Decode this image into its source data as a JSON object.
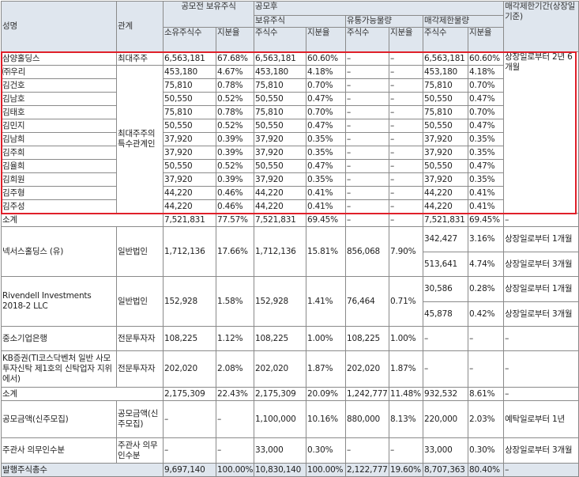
{
  "header": {
    "name": "성명",
    "relation": "관계",
    "pre": "공모전 보유주식",
    "post": "공모후",
    "post_holding": "보유주식",
    "tradable": "유통가능물량",
    "restricted": "매각제한물량",
    "lockup": "매각제한기간(상장일 기준)",
    "owned_shares": "소유주식수",
    "shares": "주식수",
    "ratio": "지분율"
  },
  "rows": [
    {
      "name": "삼양홀딩스",
      "relation": "최대주주",
      "pre_shares": "6,563,181",
      "pre_ratio": "67.68%",
      "post_shares": "6,563,181",
      "post_ratio": "60.60%",
      "tr_shares": "–",
      "tr_ratio": "–",
      "re_shares": "6,563,181",
      "re_ratio": "60.60%",
      "lockup": "상장일로부터 2년 6개월"
    },
    {
      "name": "㈜우리",
      "pre_shares": "453,180",
      "pre_ratio": "4.67%",
      "post_shares": "453,180",
      "post_ratio": "4.18%",
      "tr_shares": "–",
      "tr_ratio": "–",
      "re_shares": "453,180",
      "re_ratio": "4.18%"
    },
    {
      "name": "김건호",
      "pre_shares": "75,810",
      "pre_ratio": "0.78%",
      "post_shares": "75,810",
      "post_ratio": "0.70%",
      "tr_shares": "–",
      "tr_ratio": "–",
      "re_shares": "75,810",
      "re_ratio": "0.70%"
    },
    {
      "name": "김남호",
      "pre_shares": "50,550",
      "pre_ratio": "0.52%",
      "post_shares": "50,550",
      "post_ratio": "0.47%",
      "tr_shares": "–",
      "tr_ratio": "–",
      "re_shares": "50,550",
      "re_ratio": "0.47%"
    },
    {
      "name": "김태호",
      "pre_shares": "75,810",
      "pre_ratio": "0.78%",
      "post_shares": "75,810",
      "post_ratio": "0.70%",
      "tr_shares": "–",
      "tr_ratio": "–",
      "re_shares": "75,810",
      "re_ratio": "0.70%"
    },
    {
      "name": "김민지",
      "pre_shares": "50,550",
      "pre_ratio": "0.52%",
      "post_shares": "50,550",
      "post_ratio": "0.47%",
      "tr_shares": "–",
      "tr_ratio": "–",
      "re_shares": "50,550",
      "re_ratio": "0.47%"
    },
    {
      "name": "김남희",
      "pre_shares": "37,920",
      "pre_ratio": "0.39%",
      "post_shares": "37,920",
      "post_ratio": "0.35%",
      "tr_shares": "–",
      "tr_ratio": "–",
      "re_shares": "37,920",
      "re_ratio": "0.35%"
    },
    {
      "name": "김주희",
      "pre_shares": "37,920",
      "pre_ratio": "0.39%",
      "post_shares": "37,920",
      "post_ratio": "0.35%",
      "tr_shares": "–",
      "tr_ratio": "–",
      "re_shares": "37,920",
      "re_ratio": "0.35%"
    },
    {
      "name": "김율희",
      "pre_shares": "50,550",
      "pre_ratio": "0.52%",
      "post_shares": "50,550",
      "post_ratio": "0.47%",
      "tr_shares": "–",
      "tr_ratio": "–",
      "re_shares": "50,550",
      "re_ratio": "0.47%"
    },
    {
      "name": "김희원",
      "pre_shares": "37,920",
      "pre_ratio": "0.39%",
      "post_shares": "37,920",
      "post_ratio": "0.35%",
      "tr_shares": "–",
      "tr_ratio": "–",
      "re_shares": "37,920",
      "re_ratio": "0.35%"
    },
    {
      "name": "김주형",
      "pre_shares": "44,220",
      "pre_ratio": "0.46%",
      "post_shares": "44,220",
      "post_ratio": "0.41%",
      "tr_shares": "–",
      "tr_ratio": "–",
      "re_shares": "44,220",
      "re_ratio": "0.41%"
    },
    {
      "name": "김주성",
      "pre_shares": "44,220",
      "pre_ratio": "0.46%",
      "post_shares": "44,220",
      "post_ratio": "0.41%",
      "tr_shares": "–",
      "tr_ratio": "–",
      "re_shares": "44,220",
      "re_ratio": "0.41%"
    }
  ],
  "related_relation": "최대주주의 특수관계인",
  "subtotal1": {
    "label": "소계",
    "pre_shares": "7,521,831",
    "pre_ratio": "77.57%",
    "post_shares": "7,521,831",
    "post_ratio": "69.45%",
    "tr_shares": "–",
    "tr_ratio": "–",
    "re_shares": "7,521,831",
    "re_ratio": "69.45%",
    "lockup": "–"
  },
  "nexus": {
    "name": "넥서스홀딩스 (유)",
    "relation": "일반법인",
    "pre_shares": "1,712,136",
    "pre_ratio": "17.66%",
    "post_shares": "1,712,136",
    "post_ratio": "15.81%",
    "tr_shares": "856,068",
    "tr_ratio": "7.90%",
    "re_a_shares": "342,427",
    "re_a_ratio": "3.16%",
    "lock_a": "상장일로부터 1개월",
    "re_b_shares": "513,641",
    "re_b_ratio": "4.74%",
    "lock_b": "상장일로부터 3개월"
  },
  "rivendell": {
    "name": "Rivendell Investments 2018-2 LLC",
    "relation": "일반법인",
    "pre_shares": "152,928",
    "pre_ratio": "1.58%",
    "post_shares": "152,928",
    "post_ratio": "1.41%",
    "tr_shares": "76,464",
    "tr_ratio": "0.71%",
    "re_a_shares": "30,586",
    "re_a_ratio": "0.28%",
    "lock_a": "상장일로부터 1개월",
    "re_b_shares": "45,878",
    "re_b_ratio": "0.42%",
    "lock_b": "상장일로부터 3개월"
  },
  "sme": {
    "name": "중소기업은행",
    "relation": "전문투자자",
    "pre_shares": "108,225",
    "pre_ratio": "1.12%",
    "post_shares": "108,225",
    "post_ratio": "1.00%",
    "tr_shares": "108,225",
    "tr_ratio": "1.00%",
    "re_shares": "–",
    "re_ratio": "–",
    "lockup": "–"
  },
  "kb": {
    "name": "KB증권(TI코스닥벤처 일반 사모투자신탁 제1호의 신탁업자 지위에서)",
    "relation": "전문투자자",
    "pre_shares": "202,020",
    "pre_ratio": "2.08%",
    "post_shares": "202,020",
    "post_ratio": "1.87%",
    "tr_shares": "202,020",
    "tr_ratio": "1.87%",
    "re_shares": "–",
    "re_ratio": "–",
    "lockup": "–"
  },
  "subtotal2": {
    "label": "소계",
    "pre_shares": "2,175,309",
    "pre_ratio": "22.43%",
    "post_shares": "2,175,309",
    "post_ratio": "20.09%",
    "tr_shares": "1,242,777",
    "tr_ratio": "11.48%",
    "re_shares": "932,532",
    "re_ratio": "8.61%",
    "lockup": "–"
  },
  "offering": {
    "name": "공모금액(신주모집)",
    "relation": "공모금액(신주모집)",
    "pre_shares": "–",
    "pre_ratio": "–",
    "post_shares": "1,100,000",
    "post_ratio": "10.16%",
    "tr_shares": "880,000",
    "tr_ratio": "8.13%",
    "re_shares": "220,000",
    "re_ratio": "2.03%",
    "lockup": "예탁일로부터 1년"
  },
  "underwriter": {
    "name": "주관사 의무인수분",
    "relation": "주관사 의무인수분",
    "pre_shares": "–",
    "pre_ratio": "–",
    "post_shares": "33,000",
    "post_ratio": "0.30%",
    "tr_shares": "–",
    "tr_ratio": "–",
    "re_shares": "33,000",
    "re_ratio": "0.30%",
    "lockup": "상장일로부터 3개월"
  },
  "total": {
    "name": "발행주식총수",
    "pre_shares": "9,697,140",
    "pre_ratio": "100.00%",
    "post_shares": "10,830,140",
    "post_ratio": "100.00%",
    "tr_shares": "2,122,777",
    "tr_ratio": "19.60%",
    "re_shares": "8,707,363",
    "re_ratio": "80.40%",
    "lockup": "–"
  },
  "colors": {
    "header_bg": "#dfe6ee",
    "highlight_border": "#e0202a",
    "grid": "#8a8a8a"
  }
}
